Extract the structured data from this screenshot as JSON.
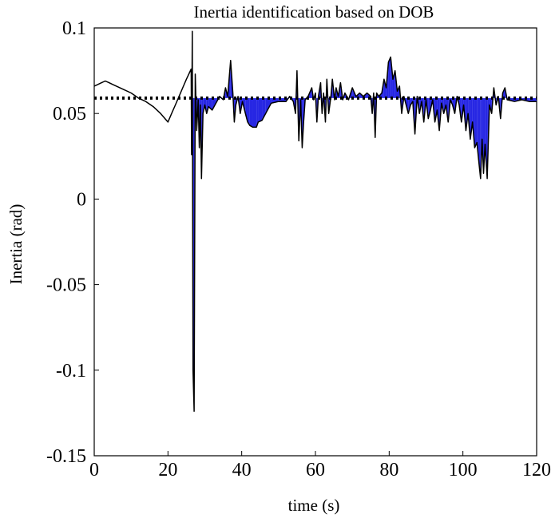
{
  "chart_data": {
    "type": "line",
    "title": "Inertia identification based on DOB",
    "xlabel": "time (s)",
    "ylabel": "Inertia (rad)",
    "xlim": [
      0,
      120
    ],
    "ylim": [
      -0.15,
      0.1
    ],
    "xticks": [
      0,
      20,
      40,
      60,
      80,
      100,
      120
    ],
    "yticks": [
      0.1,
      0.05,
      0,
      -0.05,
      -0.1,
      -0.15
    ],
    "x_tick_labels": [
      "0",
      "20",
      "40",
      "60",
      "80",
      "100",
      "120"
    ],
    "y_tick_labels": [
      "0.1",
      "0.05",
      "0",
      "-0.05",
      "-0.1",
      "-0.15"
    ],
    "grid": false,
    "colors": {
      "estimate": "#000000",
      "filled": "#1010e0",
      "reference": "#000000"
    },
    "series": [
      {
        "style": "solid",
        "points": [
          [
            0,
            0.066
          ],
          [
            1,
            0.067
          ],
          [
            2,
            0.068
          ],
          [
            3,
            0.069
          ],
          [
            4,
            0.068
          ],
          [
            5,
            0.067
          ],
          [
            6,
            0.066
          ],
          [
            8,
            0.064
          ],
          [
            10,
            0.062
          ],
          [
            12,
            0.059
          ],
          [
            14,
            0.057
          ],
          [
            16,
            0.054
          ],
          [
            18,
            0.05
          ],
          [
            20,
            0.045
          ],
          [
            21,
            0.05
          ],
          [
            22,
            0.055
          ],
          [
            23,
            0.06
          ],
          [
            24,
            0.065
          ],
          [
            25,
            0.07
          ],
          [
            26.3,
            0.076
          ],
          [
            26.4,
            0.026
          ],
          [
            26.6,
            0.098
          ],
          [
            26.8,
            -0.1
          ],
          [
            27.1,
            -0.124
          ],
          [
            27.4,
            0.073
          ],
          [
            27.8,
            0.04
          ],
          [
            28.2,
            0.058
          ],
          [
            28.5,
            0.03
          ],
          [
            28.8,
            0.055
          ],
          [
            29.1,
            0.012
          ],
          [
            29.5,
            0.05
          ],
          [
            30.0,
            0.055
          ],
          [
            30.5,
            0.05
          ],
          [
            31,
            0.054
          ],
          [
            32,
            0.052
          ],
          [
            33,
            0.056
          ],
          [
            34,
            0.06
          ],
          [
            35,
            0.058
          ],
          [
            35.6,
            0.065
          ],
          [
            36.2,
            0.06
          ],
          [
            37,
            0.081
          ],
          [
            37.6,
            0.062
          ],
          [
            38,
            0.045
          ],
          [
            38.4,
            0.055
          ],
          [
            39,
            0.06
          ],
          [
            39.6,
            0.05
          ],
          [
            40.2,
            0.057
          ],
          [
            41,
            0.05
          ],
          [
            41.6,
            0.045
          ],
          [
            42.2,
            0.043
          ],
          [
            43,
            0.042
          ],
          [
            44,
            0.042
          ],
          [
            44.5,
            0.045
          ],
          [
            45.5,
            0.046
          ],
          [
            46.5,
            0.05
          ],
          [
            48,
            0.056
          ],
          [
            50,
            0.057
          ],
          [
            52,
            0.057
          ],
          [
            53,
            0.06
          ],
          [
            54,
            0.057
          ],
          [
            54.6,
            0.05
          ],
          [
            55,
            0.075
          ],
          [
            55.5,
            0.034
          ],
          [
            56,
            0.058
          ],
          [
            56.4,
            0.03
          ],
          [
            56.8,
            0.045
          ],
          [
            57.2,
            0.058
          ],
          [
            58,
            0.06
          ],
          [
            59,
            0.065
          ],
          [
            59.5,
            0.058
          ],
          [
            60,
            0.062
          ],
          [
            60.4,
            0.045
          ],
          [
            60.8,
            0.06
          ],
          [
            61.4,
            0.068
          ],
          [
            61.8,
            0.05
          ],
          [
            62.2,
            0.062
          ],
          [
            62.7,
            0.045
          ],
          [
            63.1,
            0.07
          ],
          [
            63.6,
            0.05
          ],
          [
            64.2,
            0.06
          ],
          [
            64.6,
            0.07
          ],
          [
            65.2,
            0.058
          ],
          [
            65.6,
            0.065
          ],
          [
            66.2,
            0.06
          ],
          [
            66.8,
            0.068
          ],
          [
            67.4,
            0.058
          ],
          [
            68,
            0.062
          ],
          [
            69,
            0.058
          ],
          [
            70,
            0.065
          ],
          [
            71,
            0.06
          ],
          [
            72,
            0.062
          ],
          [
            73,
            0.06
          ],
          [
            74,
            0.062
          ],
          [
            75,
            0.06
          ],
          [
            75.4,
            0.05
          ],
          [
            75.8,
            0.062
          ],
          [
            76.2,
            0.036
          ],
          [
            76.6,
            0.062
          ],
          [
            77.2,
            0.06
          ],
          [
            78,
            0.062
          ],
          [
            78.6,
            0.07
          ],
          [
            79.2,
            0.065
          ],
          [
            79.8,
            0.08
          ],
          [
            80.4,
            0.083
          ],
          [
            81,
            0.07
          ],
          [
            81.6,
            0.075
          ],
          [
            82.2,
            0.063
          ],
          [
            82.8,
            0.066
          ],
          [
            83.4,
            0.05
          ],
          [
            84,
            0.06
          ],
          [
            84.6,
            0.055
          ],
          [
            85.2,
            0.05
          ],
          [
            85.8,
            0.055
          ],
          [
            86.4,
            0.057
          ],
          [
            87,
            0.038
          ],
          [
            87.6,
            0.06
          ],
          [
            88.2,
            0.05
          ],
          [
            88.8,
            0.057
          ],
          [
            89.4,
            0.045
          ],
          [
            90,
            0.058
          ],
          [
            90.6,
            0.047
          ],
          [
            91.2,
            0.052
          ],
          [
            91.8,
            0.058
          ],
          [
            92.4,
            0.045
          ],
          [
            93,
            0.052
          ],
          [
            93.6,
            0.04
          ],
          [
            94.2,
            0.056
          ],
          [
            94.8,
            0.05
          ],
          [
            95.4,
            0.055
          ],
          [
            96,
            0.045
          ],
          [
            96.6,
            0.058
          ],
          [
            97.2,
            0.055
          ],
          [
            97.8,
            0.05
          ],
          [
            98.4,
            0.06
          ],
          [
            99,
            0.055
          ],
          [
            99.6,
            0.045
          ],
          [
            100.2,
            0.055
          ],
          [
            100.8,
            0.04
          ],
          [
            101.4,
            0.05
          ],
          [
            102,
            0.035
          ],
          [
            102.6,
            0.045
          ],
          [
            103.2,
            0.03
          ],
          [
            103.8,
            0.033
          ],
          [
            104.4,
            0.02
          ],
          [
            104.8,
            0.012
          ],
          [
            105.2,
            0.035
          ],
          [
            105.6,
            0.015
          ],
          [
            106,
            0.032
          ],
          [
            106.6,
            0.012
          ],
          [
            107.2,
            0.055
          ],
          [
            107.8,
            0.05
          ],
          [
            108.4,
            0.065
          ],
          [
            109,
            0.055
          ],
          [
            109.6,
            0.06
          ],
          [
            110.2,
            0.047
          ],
          [
            110.8,
            0.062
          ],
          [
            111.4,
            0.065
          ],
          [
            112,
            0.058
          ],
          [
            114,
            0.057
          ],
          [
            116,
            0.058
          ],
          [
            118,
            0.057
          ],
          [
            120,
            0.057
          ]
        ]
      },
      {
        "style": "dotted",
        "points": [
          [
            0,
            0.059
          ],
          [
            120,
            0.059
          ]
        ]
      }
    ]
  }
}
